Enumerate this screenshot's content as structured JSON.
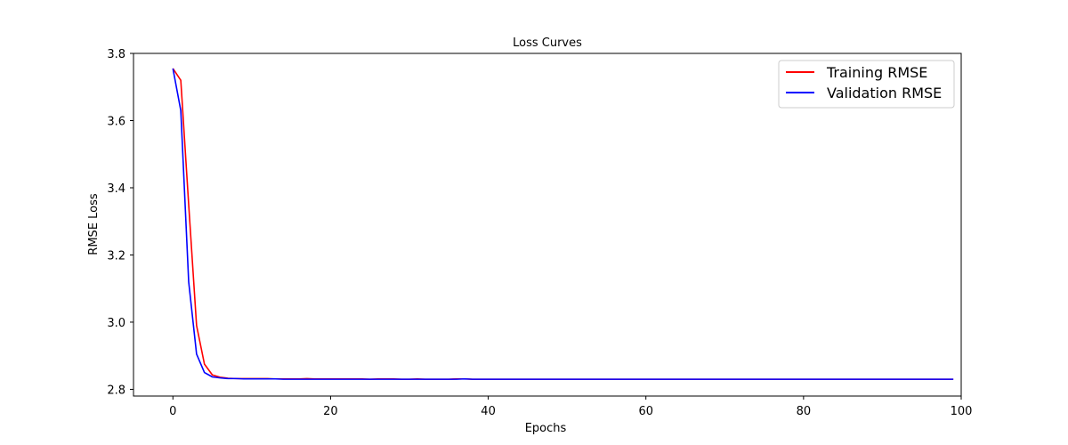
{
  "chart_data": {
    "type": "line",
    "title": "Loss Curves",
    "xlabel": "Epochs",
    "ylabel": "RMSE Loss",
    "xlim": [
      -5,
      100
    ],
    "ylim": [
      2.78,
      3.8
    ],
    "xticks": [
      0,
      20,
      40,
      60,
      80,
      100
    ],
    "yticks": [
      2.8,
      3.0,
      3.2,
      3.4,
      3.6,
      3.8
    ],
    "xtick_labels": [
      "0",
      "20",
      "40",
      "60",
      "80",
      "100"
    ],
    "ytick_labels": [
      "2.8",
      "3.0",
      "3.2",
      "3.4",
      "3.6",
      "3.8"
    ],
    "legend_position": "top-right",
    "series": [
      {
        "name": "Training RMSE",
        "color": "#ff0000",
        "x": [
          0,
          1,
          2,
          3,
          4,
          5,
          6,
          7,
          8,
          9,
          10,
          11,
          12,
          13,
          14,
          15,
          16,
          17,
          18,
          19,
          20,
          21,
          22,
          23,
          24,
          25,
          26,
          27,
          28,
          29,
          30,
          31,
          32,
          33,
          34,
          35,
          36,
          37,
          38,
          39,
          40,
          41,
          42,
          43,
          44,
          45,
          46,
          47,
          48,
          49,
          50,
          51,
          52,
          53,
          54,
          55,
          56,
          57,
          58,
          59,
          60,
          61,
          62,
          63,
          64,
          65,
          66,
          67,
          68,
          69,
          70,
          71,
          72,
          73,
          74,
          75,
          76,
          77,
          78,
          79,
          80,
          81,
          82,
          83,
          84,
          85,
          86,
          87,
          88,
          89,
          90,
          91,
          92,
          93,
          94,
          95,
          96,
          97,
          98,
          99
        ],
        "values": [
          3.755,
          3.72,
          3.35,
          2.99,
          2.875,
          2.843,
          2.836,
          2.833,
          2.832,
          2.832,
          2.832,
          2.832,
          2.832,
          2.831,
          2.831,
          2.831,
          2.831,
          2.832,
          2.831,
          2.831,
          2.831,
          2.831,
          2.831,
          2.831,
          2.831,
          2.83,
          2.831,
          2.831,
          2.831,
          2.83,
          2.83,
          2.831,
          2.83,
          2.83,
          2.83,
          2.83,
          2.831,
          2.831,
          2.83,
          2.83,
          2.83,
          2.83,
          2.83,
          2.83,
          2.83,
          2.83,
          2.83,
          2.83,
          2.83,
          2.83,
          2.83,
          2.83,
          2.83,
          2.83,
          2.83,
          2.83,
          2.83,
          2.83,
          2.83,
          2.83,
          2.83,
          2.83,
          2.83,
          2.83,
          2.83,
          2.83,
          2.83,
          2.83,
          2.83,
          2.83,
          2.83,
          2.83,
          2.83,
          2.83,
          2.83,
          2.83,
          2.83,
          2.83,
          2.83,
          2.83,
          2.83,
          2.83,
          2.83,
          2.83,
          2.83,
          2.83,
          2.83,
          2.83,
          2.83,
          2.83,
          2.83,
          2.83,
          2.83,
          2.83,
          2.83,
          2.83,
          2.83,
          2.83,
          2.83,
          2.83
        ]
      },
      {
        "name": "Validation RMSE",
        "color": "#0000ff",
        "x": [
          0,
          1,
          2,
          3,
          4,
          5,
          6,
          7,
          8,
          9,
          10,
          11,
          12,
          13,
          14,
          15,
          16,
          17,
          18,
          19,
          20,
          21,
          22,
          23,
          24,
          25,
          26,
          27,
          28,
          29,
          30,
          31,
          32,
          33,
          34,
          35,
          36,
          37,
          38,
          39,
          40,
          41,
          42,
          43,
          44,
          45,
          46,
          47,
          48,
          49,
          50,
          51,
          52,
          53,
          54,
          55,
          56,
          57,
          58,
          59,
          60,
          61,
          62,
          63,
          64,
          65,
          66,
          67,
          68,
          69,
          70,
          71,
          72,
          73,
          74,
          75,
          76,
          77,
          78,
          79,
          80,
          81,
          82,
          83,
          84,
          85,
          86,
          87,
          88,
          89,
          90,
          91,
          92,
          93,
          94,
          95,
          96,
          97,
          98,
          99
        ],
        "values": [
          3.755,
          3.63,
          3.12,
          2.905,
          2.85,
          2.837,
          2.834,
          2.832,
          2.832,
          2.831,
          2.831,
          2.831,
          2.831,
          2.831,
          2.83,
          2.83,
          2.83,
          2.83,
          2.83,
          2.83,
          2.83,
          2.83,
          2.83,
          2.83,
          2.83,
          2.83,
          2.83,
          2.83,
          2.83,
          2.83,
          2.83,
          2.83,
          2.83,
          2.83,
          2.83,
          2.83,
          2.83,
          2.831,
          2.83,
          2.83,
          2.83,
          2.83,
          2.83,
          2.83,
          2.83,
          2.83,
          2.83,
          2.83,
          2.83,
          2.83,
          2.83,
          2.83,
          2.83,
          2.83,
          2.83,
          2.83,
          2.83,
          2.83,
          2.83,
          2.83,
          2.83,
          2.83,
          2.83,
          2.83,
          2.83,
          2.83,
          2.83,
          2.83,
          2.83,
          2.83,
          2.83,
          2.83,
          2.83,
          2.83,
          2.83,
          2.83,
          2.83,
          2.83,
          2.83,
          2.83,
          2.83,
          2.83,
          2.83,
          2.83,
          2.83,
          2.83,
          2.83,
          2.83,
          2.83,
          2.83,
          2.83,
          2.83,
          2.83,
          2.83,
          2.83,
          2.83,
          2.83,
          2.83,
          2.83,
          2.83
        ]
      }
    ]
  }
}
